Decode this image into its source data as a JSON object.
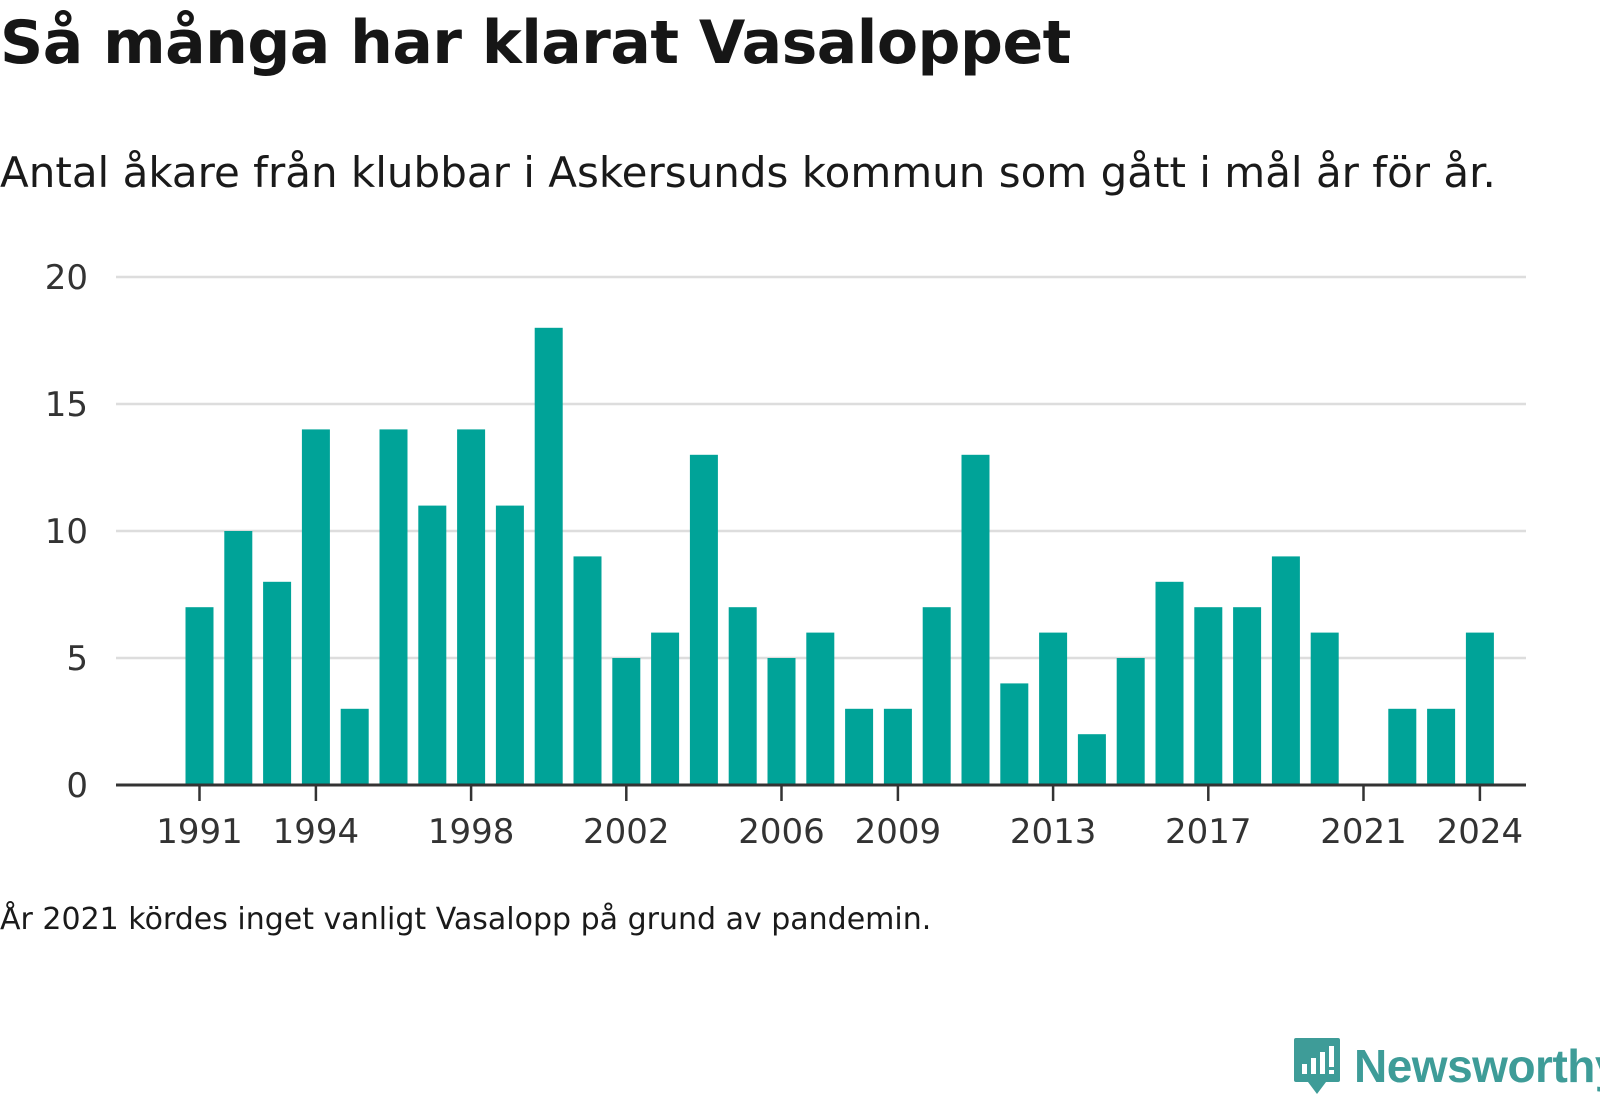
{
  "header": {
    "title": "Så många har klarat Vasaloppet",
    "subtitle": "Antal åkare från klubbar i Askersunds kommun som gått i mål år för år."
  },
  "footer": {
    "note": "År 2021 kördes inget vanligt Vasalopp på grund av pandemin.",
    "logo_text": "Newsworthy"
  },
  "colors": {
    "bar": "#00a398",
    "grid": "#dddddd",
    "axis": "#333333",
    "logo": "#3e9c98"
  },
  "chart_data": {
    "type": "bar",
    "x": [
      1991,
      1992,
      1993,
      1994,
      1995,
      1996,
      1997,
      1998,
      1999,
      2000,
      2001,
      2002,
      2003,
      2004,
      2005,
      2006,
      2007,
      2008,
      2009,
      2010,
      2011,
      2012,
      2013,
      2014,
      2015,
      2016,
      2017,
      2018,
      2019,
      2020,
      2021,
      2022,
      2023,
      2024
    ],
    "values": [
      7,
      10,
      8,
      14,
      3,
      14,
      11,
      14,
      11,
      18,
      9,
      5,
      6,
      13,
      7,
      5,
      6,
      3,
      3,
      7,
      13,
      4,
      6,
      2,
      5,
      8,
      7,
      7,
      9,
      6,
      0,
      3,
      3,
      6
    ],
    "xticks": [
      "1991",
      "1994",
      "1998",
      "2002",
      "2006",
      "2009",
      "2013",
      "2017",
      "2021",
      "2024"
    ],
    "yticks": [
      "0",
      "5",
      "10",
      "15",
      "20"
    ],
    "ylim": [
      0,
      20
    ],
    "grid": true
  }
}
